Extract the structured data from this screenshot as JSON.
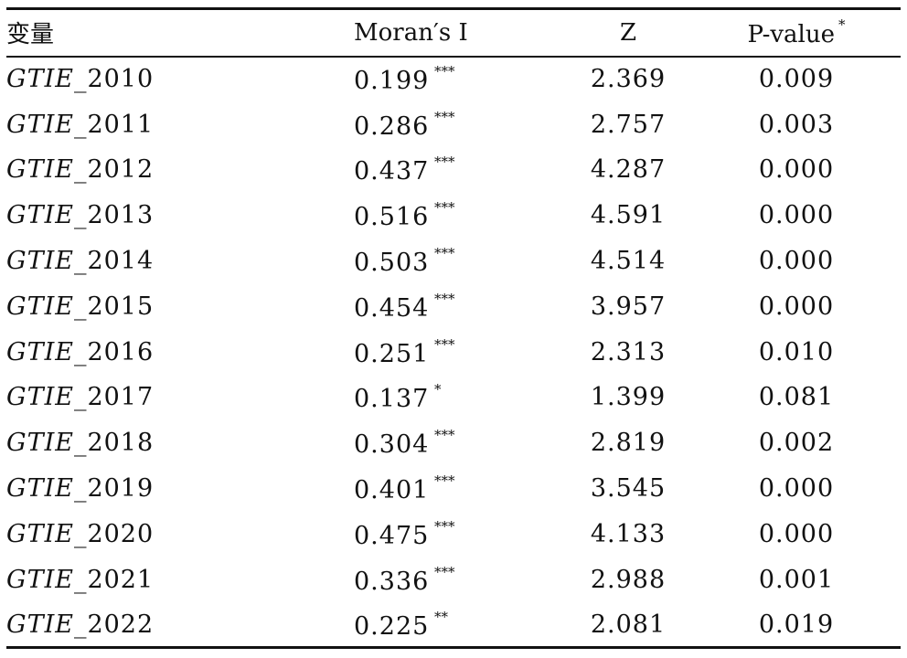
{
  "table": {
    "headers": {
      "variable": "变量",
      "moran": "Moran′s I",
      "z": "Z",
      "p": "P-value",
      "p_marker": "*"
    },
    "rows": [
      {
        "var_prefix": "GTIE_",
        "year": "2010",
        "moran": "0.199",
        "stars": "***",
        "z": "2.369",
        "p": "0.009"
      },
      {
        "var_prefix": "GTIE_",
        "year": "2011",
        "moran": "0.286",
        "stars": "***",
        "z": "2.757",
        "p": "0.003"
      },
      {
        "var_prefix": "GTIE_",
        "year": "2012",
        "moran": "0.437",
        "stars": "***",
        "z": "4.287",
        "p": "0.000"
      },
      {
        "var_prefix": "GTIE_",
        "year": "2013",
        "moran": "0.516",
        "stars": "***",
        "z": "4.591",
        "p": "0.000"
      },
      {
        "var_prefix": "GTIE_",
        "year": "2014",
        "moran": "0.503",
        "stars": "***",
        "z": "4.514",
        "p": "0.000"
      },
      {
        "var_prefix": "GTIE_",
        "year": "2015",
        "moran": "0.454",
        "stars": "***",
        "z": "3.957",
        "p": "0.000"
      },
      {
        "var_prefix": "GTIE_",
        "year": "2016",
        "moran": "0.251",
        "stars": "***",
        "z": "2.313",
        "p": "0.010"
      },
      {
        "var_prefix": "GTIE_",
        "year": "2017",
        "moran": "0.137",
        "stars": "*",
        "z": "1.399",
        "p": "0.081"
      },
      {
        "var_prefix": "GTIE_",
        "year": "2018",
        "moran": "0.304",
        "stars": "***",
        "z": "2.819",
        "p": "0.002"
      },
      {
        "var_prefix": "GTIE_",
        "year": "2019",
        "moran": "0.401",
        "stars": "***",
        "z": "3.545",
        "p": "0.000"
      },
      {
        "var_prefix": "GTIE_",
        "year": "2020",
        "moran": "0.475",
        "stars": "***",
        "z": "4.133",
        "p": "0.000"
      },
      {
        "var_prefix": "GTIE_",
        "year": "2021",
        "moran": "0.336",
        "stars": "***",
        "z": "2.988",
        "p": "0.001"
      },
      {
        "var_prefix": "GTIE_",
        "year": "2022",
        "moran": "0.225",
        "stars": "**",
        "z": "2.081",
        "p": "0.019"
      }
    ]
  }
}
